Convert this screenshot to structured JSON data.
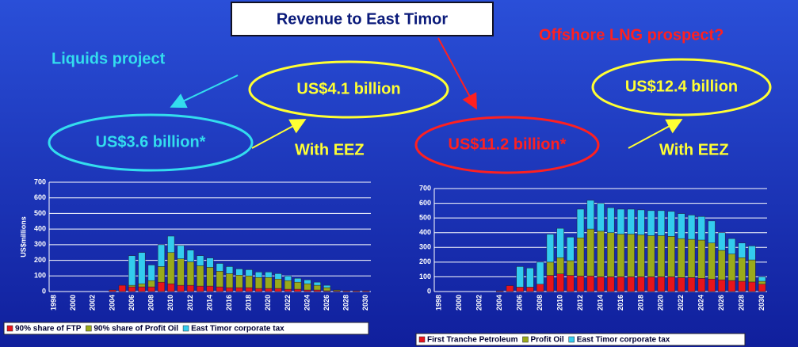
{
  "slide": {
    "title": "Revenue to East Timor",
    "left_heading": "Liquids project",
    "right_heading": "Offshore LNG prospect?",
    "left_estimate": "US$3.6 billion*",
    "left_eez_estimate": "US$4.1 billion",
    "left_eez_note": "With EEZ",
    "right_estimate": "US$11.2 billion*",
    "right_eez_estimate": "US$12.4 billion",
    "right_eez_note": "With EEZ"
  },
  "chart_data": [
    {
      "type": "stacked_bar",
      "ylabel": "US$millions",
      "categories": [
        "1998",
        null,
        "2000",
        null,
        "2002",
        null,
        "2004",
        null,
        "2006",
        null,
        "2008",
        null,
        "2010",
        null,
        "2012",
        null,
        "2014",
        null,
        "2016",
        null,
        "2018",
        null,
        "2020",
        null,
        "2022",
        null,
        "2024",
        null,
        "2026",
        null,
        "2028",
        null,
        "2030"
      ],
      "ylim": [
        0,
        700
      ],
      "yticks": [
        0,
        100,
        200,
        300,
        400,
        500,
        600,
        700
      ],
      "grid": true,
      "series": [
        {
          "name": "90% share of FTP",
          "color": "#e8141b",
          "values": [
            0,
            0,
            0,
            0,
            0,
            0,
            10,
            40,
            30,
            30,
            30,
            60,
            50,
            40,
            40,
            35,
            35,
            30,
            25,
            25,
            25,
            20,
            20,
            20,
            15,
            15,
            10,
            10,
            5,
            5,
            5,
            5,
            5
          ]
        },
        {
          "name": "90% share of Profit Oil",
          "color": "#9aaa1a",
          "values": [
            0,
            0,
            0,
            0,
            0,
            0,
            0,
            0,
            10,
            20,
            40,
            100,
            200,
            170,
            150,
            130,
            120,
            100,
            90,
            80,
            75,
            70,
            70,
            60,
            55,
            45,
            40,
            30,
            20,
            5,
            0,
            0,
            0
          ]
        },
        {
          "name": "East Timor corporate tax",
          "color": "#33ccee",
          "values": [
            0,
            0,
            0,
            0,
            0,
            0,
            0,
            0,
            190,
            200,
            100,
            140,
            105,
            85,
            75,
            65,
            60,
            50,
            45,
            40,
            40,
            35,
            35,
            35,
            30,
            25,
            25,
            20,
            15,
            0,
            0,
            0,
            0
          ]
        }
      ]
    },
    {
      "type": "stacked_bar",
      "categories": [
        "1998",
        null,
        "2000",
        null,
        "2002",
        null,
        "2004",
        null,
        "2006",
        null,
        "2008",
        null,
        "2010",
        null,
        "2012",
        null,
        "2014",
        null,
        "2016",
        null,
        "2018",
        null,
        "2020",
        null,
        "2022",
        null,
        "2024",
        null,
        "2026",
        null,
        "2028",
        null,
        "2030"
      ],
      "ylim": [
        0,
        700
      ],
      "yticks": [
        0,
        100,
        200,
        300,
        400,
        500,
        600,
        700
      ],
      "grid": true,
      "series": [
        {
          "name": "First Tranche Petroleum",
          "color": "#e8141b",
          "values": [
            0,
            0,
            0,
            0,
            0,
            0,
            5,
            40,
            30,
            30,
            50,
            110,
            120,
            110,
            105,
            105,
            100,
            100,
            100,
            100,
            100,
            100,
            100,
            100,
            95,
            95,
            90,
            85,
            80,
            75,
            70,
            65,
            50
          ]
        },
        {
          "name": "Profit Oil",
          "color": "#9aaa1a",
          "values": [
            0,
            0,
            0,
            0,
            0,
            0,
            0,
            0,
            0,
            0,
            0,
            90,
            110,
            100,
            260,
            320,
            310,
            300,
            290,
            290,
            285,
            280,
            280,
            275,
            265,
            260,
            260,
            245,
            200,
            180,
            160,
            150,
            20
          ]
        },
        {
          "name": "East Timor corporate tax",
          "color": "#33ccee",
          "values": [
            0,
            0,
            0,
            0,
            0,
            0,
            0,
            0,
            140,
            130,
            150,
            190,
            200,
            160,
            195,
            195,
            190,
            170,
            170,
            170,
            170,
            170,
            170,
            170,
            170,
            165,
            160,
            150,
            120,
            105,
            100,
            95,
            30
          ]
        }
      ]
    }
  ]
}
